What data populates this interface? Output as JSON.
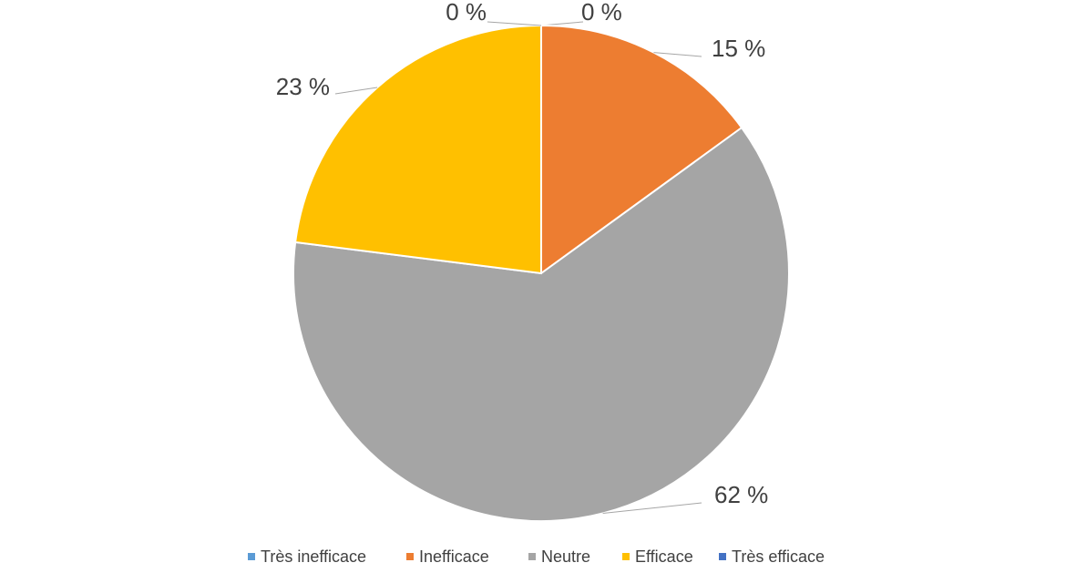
{
  "chart_data": {
    "type": "pie",
    "categories": [
      "Très inefficace",
      "Inefficace",
      "Neutre",
      "Efficace",
      "Très efficace"
    ],
    "values": [
      0,
      15,
      62,
      23,
      0
    ],
    "value_labels": [
      "0 %",
      "15 %",
      "62 %",
      "23 %",
      "0 %"
    ],
    "colors": [
      "#5b9bd5",
      "#ed7d31",
      "#a5a5a5",
      "#ffc000",
      "#4472c4"
    ],
    "legend": "bottom"
  }
}
